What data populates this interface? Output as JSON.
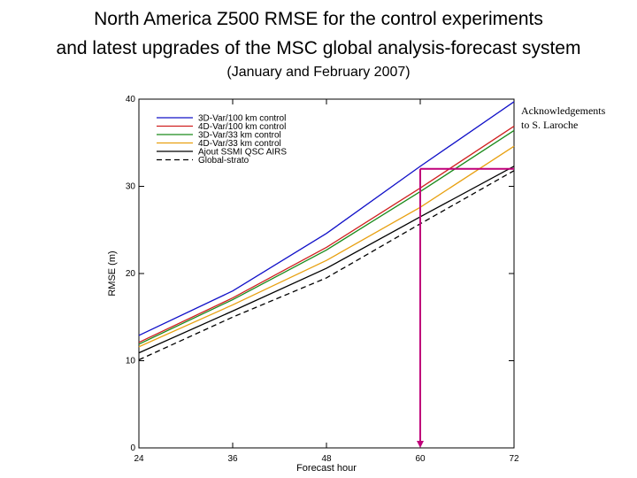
{
  "title_line1": "North America Z500 RMSE for the control experiments",
  "title_line2": "and latest upgrades of the MSC global analysis-forecast system",
  "subtitle": "(January and February 2007)",
  "acknowledgement_line1": "Acknowledgements",
  "acknowledgement_line2": "to S. Laroche",
  "chart_data": {
    "type": "line",
    "title": "North America Z500 RMSE for the control experiments and latest upgrades of the MSC global analysis-forecast system",
    "subtitle": "(January and February 2007)",
    "xlabel": "Forecast hour",
    "ylabel": "RMSE (m)",
    "x": [
      24,
      36,
      48,
      60,
      72
    ],
    "xlim": [
      24,
      72
    ],
    "ylim": [
      0,
      40
    ],
    "xticks": [
      24,
      36,
      48,
      60,
      72
    ],
    "yticks": [
      0,
      10,
      20,
      30,
      40
    ],
    "grid": false,
    "legend_position": "top-left",
    "series": [
      {
        "name": "3D-Var/100 km control",
        "color": "#1010c8",
        "dash": "solid",
        "values": [
          12.9,
          18.0,
          24.6,
          32.3,
          39.7
        ]
      },
      {
        "name": "4D-Var/100 km control",
        "color": "#d02020",
        "dash": "solid",
        "values": [
          12.1,
          17.2,
          23.0,
          29.8,
          36.9
        ]
      },
      {
        "name": "3D-Var/33 km control",
        "color": "#1a8a1a",
        "dash": "solid",
        "values": [
          11.9,
          17.0,
          22.7,
          29.4,
          36.4
        ]
      },
      {
        "name": "4D-Var/33 km control",
        "color": "#e8a010",
        "dash": "solid",
        "values": [
          11.6,
          16.4,
          21.5,
          27.6,
          34.6
        ]
      },
      {
        "name": "Ajout SSMI QSC AIRS",
        "color": "#000000",
        "dash": "solid",
        "values": [
          10.9,
          15.7,
          20.6,
          26.5,
          32.3
        ]
      },
      {
        "name": "Global-strato",
        "color": "#000000",
        "dash": "dashed",
        "values": [
          10.1,
          15.0,
          19.5,
          25.7,
          31.8
        ]
      }
    ],
    "annotations": [
      {
        "type": "horizontal-line",
        "color": "#c0007a",
        "x_range": [
          60,
          72
        ],
        "y": 32
      },
      {
        "type": "vertical-arrow",
        "color": "#c0007a",
        "x": 60,
        "y_range": [
          32,
          0
        ]
      }
    ]
  }
}
